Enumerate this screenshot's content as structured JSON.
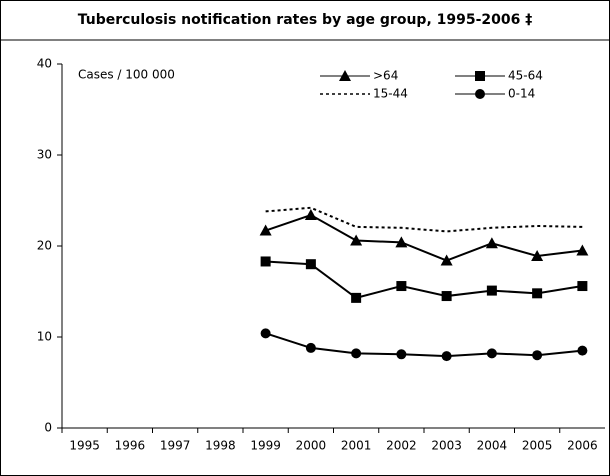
{
  "chart_data": {
    "type": "line",
    "title": "Tuberculosis notification rates by age group, 1995-2006 ‡",
    "y_label": "Cases / 100 000",
    "categories": [
      "1995",
      "1996",
      "1997",
      "1998",
      "1999",
      "2000",
      "2001",
      "2002",
      "2003",
      "2004",
      "2005",
      "2006"
    ],
    "series": [
      {
        "name": ">64",
        "color": "#000000",
        "marker": "triangle",
        "style": "solid",
        "values": [
          null,
          null,
          null,
          null,
          21.7,
          23.4,
          20.6,
          20.4,
          18.4,
          20.3,
          18.9,
          19.5
        ]
      },
      {
        "name": "45-64",
        "color": "#000000",
        "marker": "square",
        "style": "solid",
        "values": [
          null,
          null,
          null,
          null,
          18.3,
          18.0,
          14.3,
          15.6,
          14.5,
          15.1,
          14.8,
          15.6
        ]
      },
      {
        "name": "15-44",
        "color": "#000000",
        "marker": "none",
        "style": "dotted",
        "values": [
          null,
          null,
          null,
          null,
          23.8,
          24.2,
          22.1,
          22.0,
          21.6,
          22.0,
          22.2,
          22.1
        ]
      },
      {
        "name": "0-14",
        "color": "#000000",
        "marker": "circle",
        "style": "solid",
        "values": [
          null,
          null,
          null,
          null,
          10.4,
          8.8,
          8.2,
          8.1,
          7.9,
          8.2,
          8.0,
          8.5
        ]
      }
    ],
    "ylim": [
      0,
      40
    ],
    "yticks": [
      0,
      10,
      20,
      30,
      40
    ],
    "grid": false,
    "legend": "top-right"
  }
}
